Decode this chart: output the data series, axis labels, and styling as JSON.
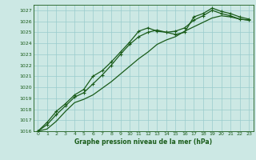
{
  "title": "Graphe pression niveau de la mer (hPa)",
  "bg_color": "#cce8e4",
  "grid_color": "#99cccc",
  "line_color": "#1a5c1a",
  "xlim": [
    -0.5,
    23.5
  ],
  "ylim": [
    1016,
    1027.5
  ],
  "xticks": [
    0,
    1,
    2,
    3,
    4,
    5,
    6,
    7,
    8,
    9,
    10,
    11,
    12,
    13,
    14,
    15,
    16,
    17,
    18,
    19,
    20,
    21,
    22,
    23
  ],
  "yticks": [
    1016,
    1017,
    1018,
    1019,
    1020,
    1021,
    1022,
    1023,
    1024,
    1025,
    1026,
    1027
  ],
  "series": [
    {
      "values": [
        1016.0,
        1016.8,
        1017.8,
        1018.5,
        1019.3,
        1019.8,
        1021.0,
        1021.5,
        1022.3,
        1023.2,
        1024.1,
        1025.1,
        1025.4,
        1025.1,
        1025.0,
        1024.8,
        1025.0,
        1026.4,
        1026.7,
        1027.2,
        1026.9,
        1026.7,
        1026.4,
        1026.2
      ],
      "marker": true,
      "linewidth": 0.9
    },
    {
      "values": [
        1016.0,
        1016.6,
        1017.5,
        1018.3,
        1019.1,
        1019.5,
        1020.3,
        1021.1,
        1022.0,
        1023.0,
        1023.9,
        1024.6,
        1025.0,
        1025.2,
        1025.0,
        1025.1,
        1025.4,
        1026.1,
        1026.5,
        1027.0,
        1026.7,
        1026.5,
        1026.2,
        1026.1
      ],
      "marker": true,
      "linewidth": 0.9
    },
    {
      "values": [
        1016.0,
        1016.2,
        1016.9,
        1017.8,
        1018.6,
        1018.9,
        1019.3,
        1019.9,
        1020.5,
        1021.2,
        1021.9,
        1022.6,
        1023.2,
        1023.9,
        1024.3,
        1024.6,
        1025.1,
        1025.5,
        1025.9,
        1026.3,
        1026.5,
        1026.4,
        1026.2,
        1026.1
      ],
      "marker": false,
      "linewidth": 0.9
    }
  ]
}
